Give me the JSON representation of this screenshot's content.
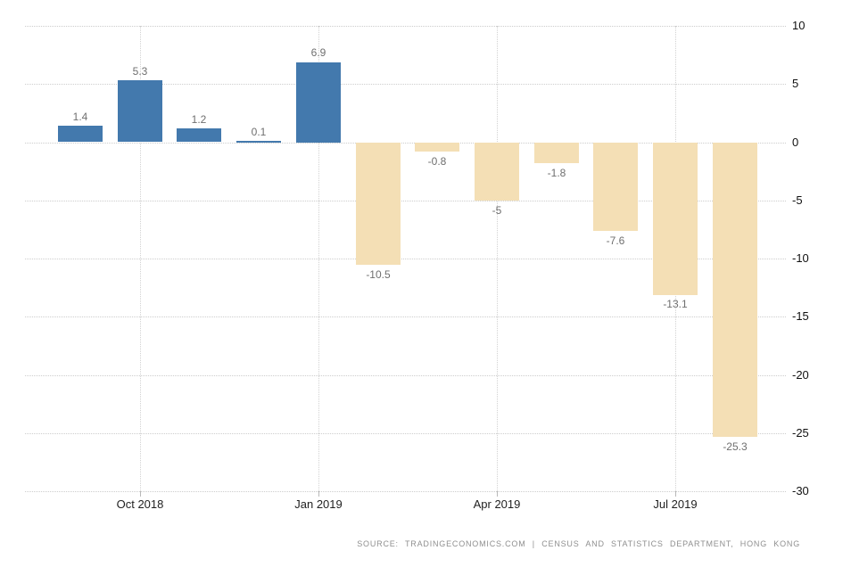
{
  "chart_data": {
    "type": "bar",
    "title": "",
    "xlabel": "",
    "ylabel": "",
    "values": [
      1.4,
      5.3,
      1.2,
      0.1,
      6.9,
      -10.5,
      -0.8,
      -5,
      -1.8,
      -7.6,
      -13.1,
      -25.3
    ],
    "bar_labels": [
      "1.4",
      "5.3",
      "1.2",
      "0.1",
      "6.9",
      "-10.5",
      "-0.8",
      "-5",
      "-1.8",
      "-7.6",
      "-13.1",
      "-25.3"
    ],
    "x_tick_labels": [
      {
        "index": 1,
        "label": "Oct 2018"
      },
      {
        "index": 4,
        "label": "Jan 2019"
      },
      {
        "index": 7,
        "label": "Apr 2019"
      },
      {
        "index": 10,
        "label": "Jul 2019"
      }
    ],
    "y_ticks": [
      10,
      5,
      0,
      -5,
      -10,
      -15,
      -20,
      -25,
      -30
    ],
    "y_tick_labels": [
      "10",
      "5",
      "0",
      "-5",
      "-10",
      "-15",
      "-20",
      "-25",
      "-30"
    ],
    "ylim": [
      -30,
      10
    ],
    "grid": "dotted",
    "legend": "none",
    "y_axis_side": "right",
    "colors": {
      "positive_bar": "#4379ad",
      "negative_bar": "#f4dfb5",
      "gridline": "#cdcdcd",
      "value_label": "#6f6f6f",
      "axis_label": "#1f1f1f"
    }
  },
  "source": {
    "text": "SOURCE:  TRADINGECONOMICS.COM  |  CENSUS AND STATISTICS DEPARTMENT,  HONG KONG"
  }
}
